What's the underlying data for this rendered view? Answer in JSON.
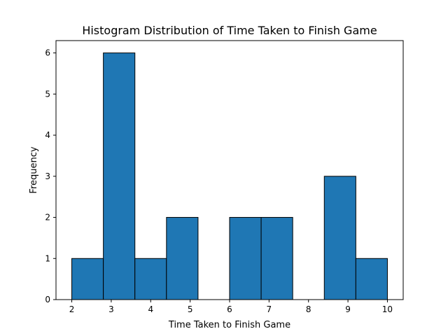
{
  "chart_data": {
    "type": "bar",
    "title": "Histogram Distribution of Time Taken to Finish Game",
    "xlabel": "Time Taken to Finish Game",
    "ylabel": "Frequency",
    "bin_edges": [
      2.0,
      2.8,
      3.6,
      4.4,
      5.2,
      6.0,
      6.8,
      7.6,
      8.4,
      9.2,
      10.0
    ],
    "values": [
      1,
      6,
      1,
      2,
      0,
      2,
      2,
      0,
      3,
      1
    ],
    "xlim": [
      1.6,
      10.4
    ],
    "ylim": [
      0,
      6.3
    ],
    "x_ticks": [
      2,
      3,
      4,
      5,
      6,
      7,
      8,
      9,
      10
    ],
    "y_ticks": [
      0,
      1,
      2,
      3,
      4,
      5,
      6
    ],
    "bar_color": "#1f77b4",
    "edge_color": "#000000",
    "grid": false,
    "legend": "none"
  }
}
